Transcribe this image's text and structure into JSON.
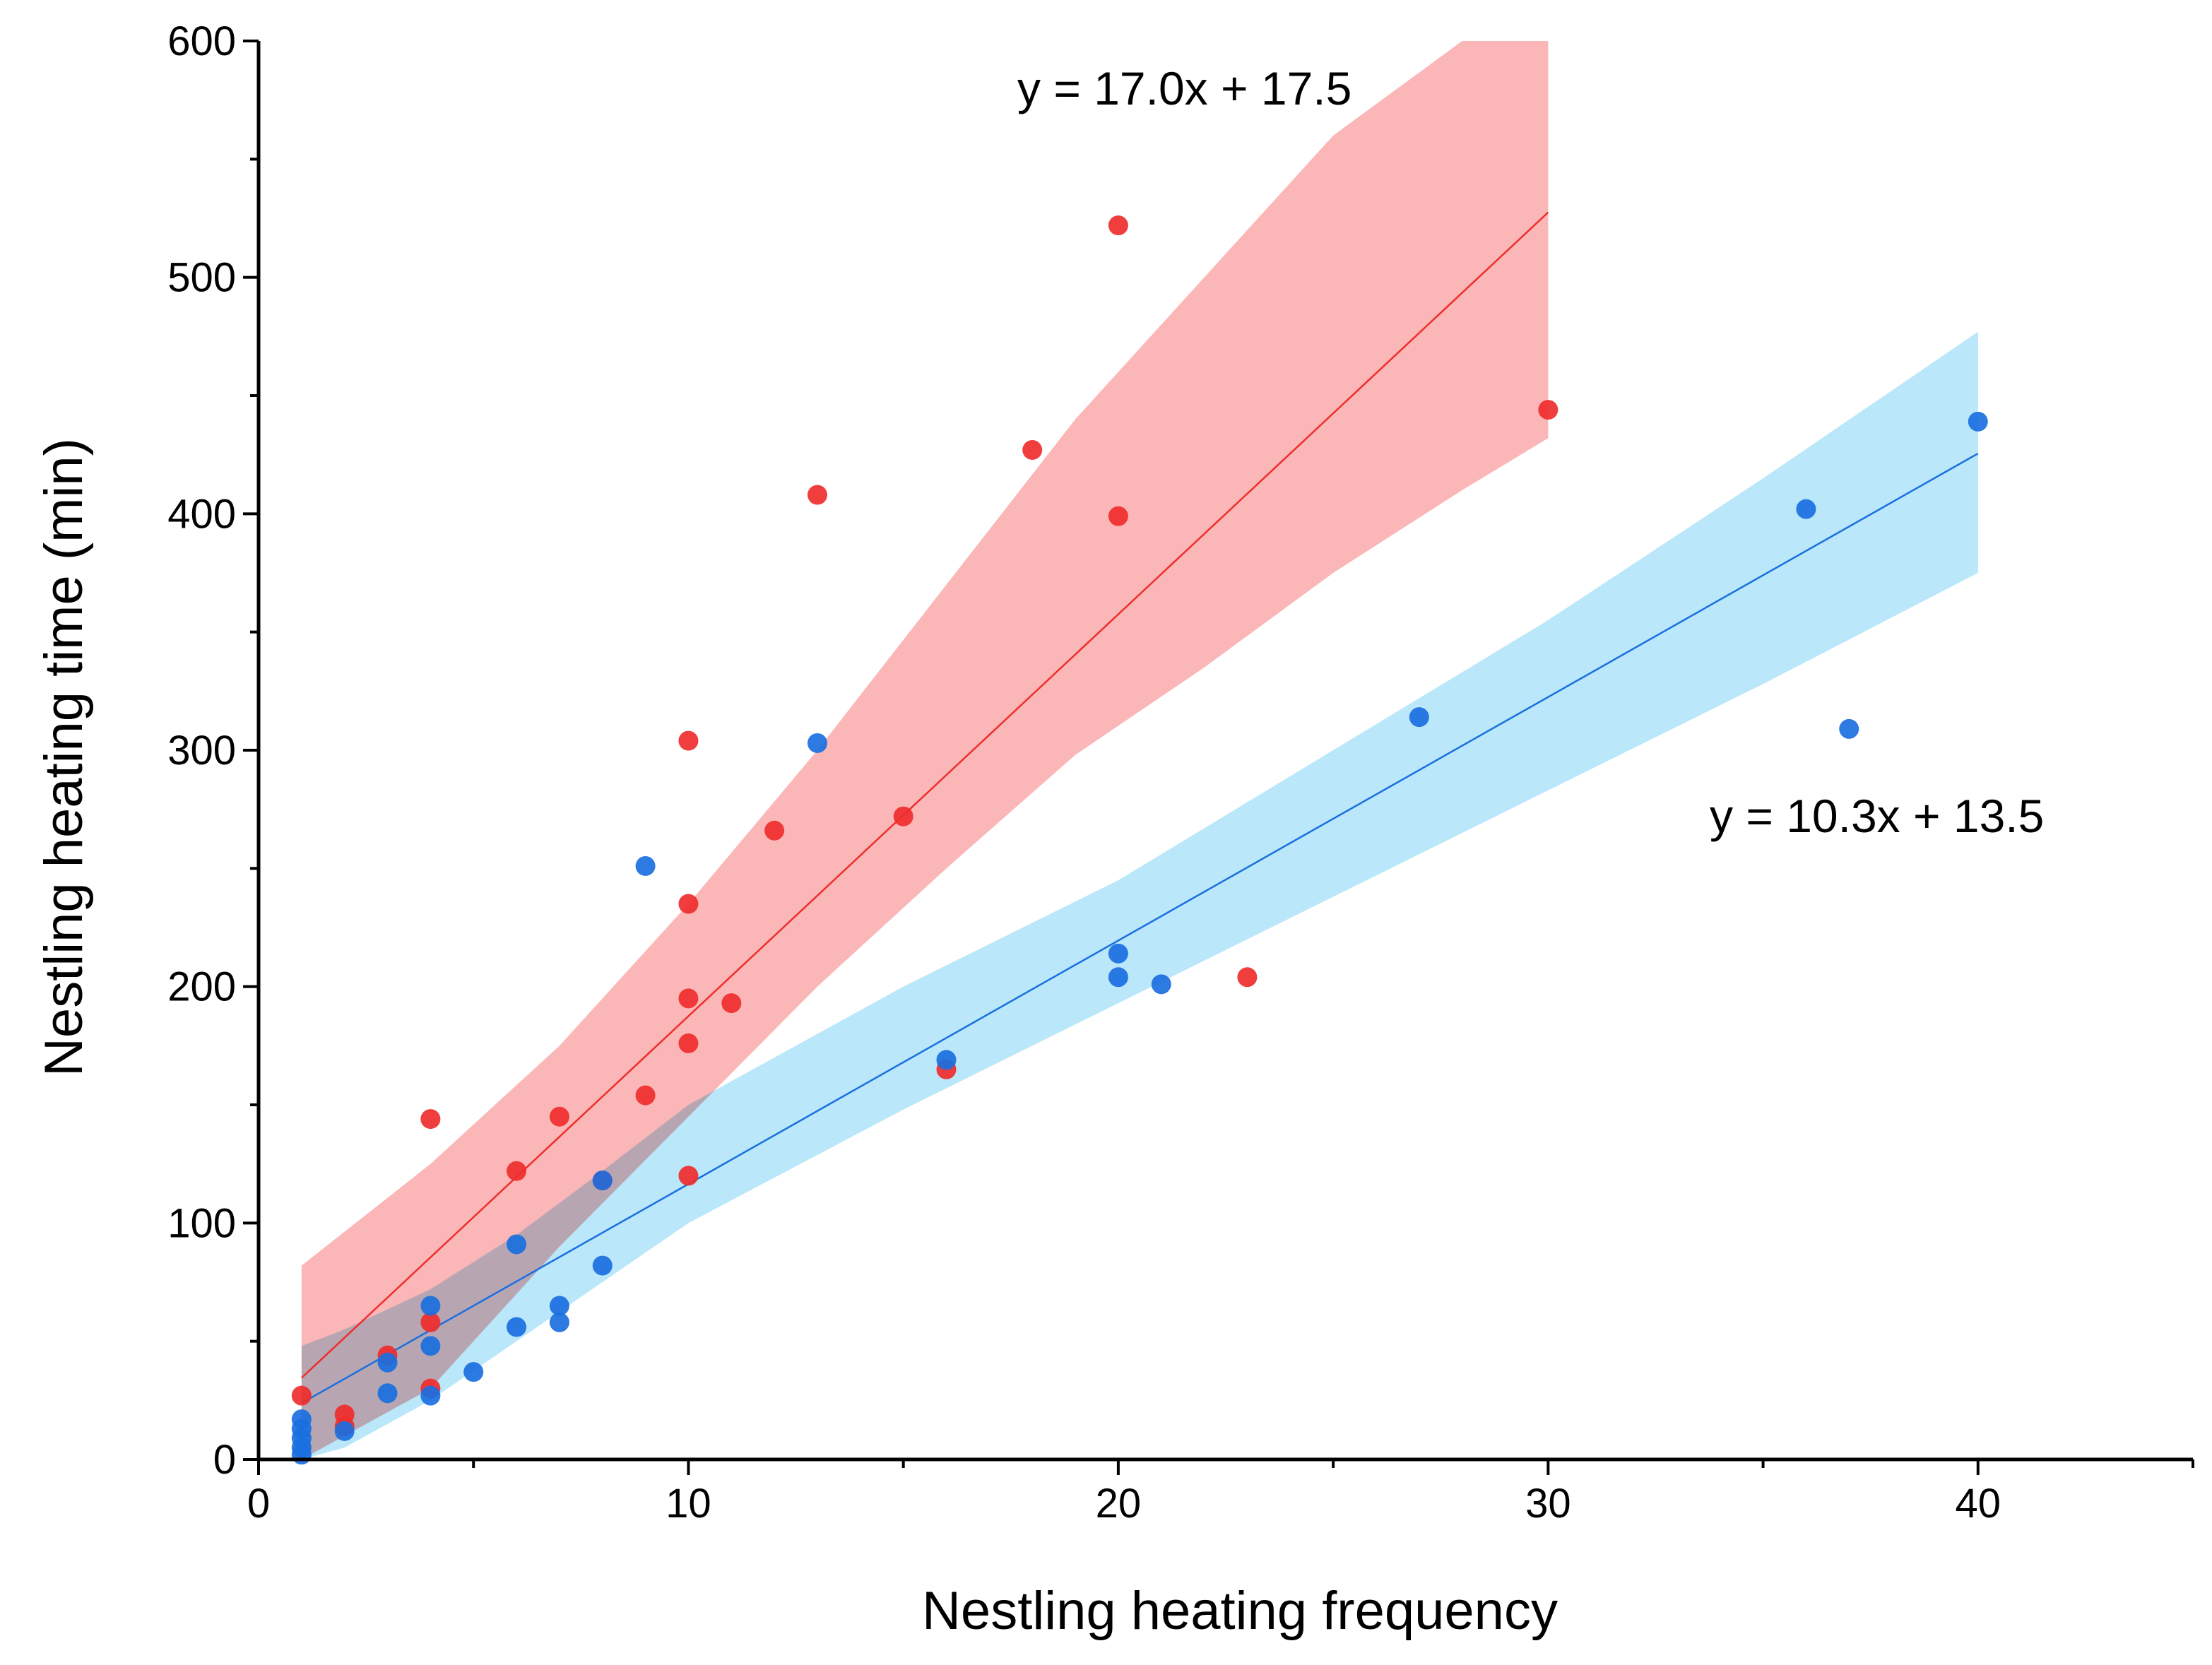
{
  "chart_data": {
    "type": "scatter",
    "title": "",
    "xlabel": "Nestling heating frequency",
    "ylabel": "Nestling heating time (min)",
    "xlim": [
      0,
      45
    ],
    "ylim": [
      0,
      600
    ],
    "x_ticks": [
      0,
      10,
      20,
      30,
      40
    ],
    "x_tick_labels": [
      "0",
      "10",
      "20",
      "30",
      "40"
    ],
    "y_ticks": [
      0,
      100,
      200,
      300,
      400,
      500,
      600
    ],
    "y_tick_labels": [
      "0",
      "100",
      "200",
      "300",
      "400",
      "500",
      "600"
    ],
    "grid": false,
    "legend": "none",
    "series": [
      {
        "name": "red",
        "color": "#ef2d2d",
        "band_color": "#fbb3b3",
        "equation": "y = 17.0x + 17.5",
        "slope": 17.0,
        "intercept": 17.5,
        "fit_range": [
          1,
          30
        ],
        "band": {
          "x": [
            1,
            4,
            7,
            10,
            13,
            16,
            19,
            22,
            25,
            28,
            30
          ],
          "lower": [
            0,
            30,
            90,
            145,
            200,
            250,
            298,
            335,
            375,
            410,
            432
          ],
          "upper": [
            82,
            125,
            175,
            235,
            300,
            370,
            440,
            500,
            560,
            600,
            600
          ]
        },
        "points": [
          {
            "x": 1,
            "y": 27
          },
          {
            "x": 2,
            "y": 19
          },
          {
            "x": 2,
            "y": 14
          },
          {
            "x": 3,
            "y": 44
          },
          {
            "x": 4,
            "y": 144
          },
          {
            "x": 4,
            "y": 58
          },
          {
            "x": 4,
            "y": 30
          },
          {
            "x": 6,
            "y": 122
          },
          {
            "x": 7,
            "y": 145
          },
          {
            "x": 8,
            "y": 118
          },
          {
            "x": 9,
            "y": 154
          },
          {
            "x": 10,
            "y": 304
          },
          {
            "x": 10,
            "y": 235
          },
          {
            "x": 10,
            "y": 195
          },
          {
            "x": 10,
            "y": 176
          },
          {
            "x": 10,
            "y": 120
          },
          {
            "x": 11,
            "y": 193
          },
          {
            "x": 12,
            "y": 266
          },
          {
            "x": 13,
            "y": 408
          },
          {
            "x": 15,
            "y": 272
          },
          {
            "x": 16,
            "y": 165
          },
          {
            "x": 18,
            "y": 427
          },
          {
            "x": 20,
            "y": 522
          },
          {
            "x": 20,
            "y": 399
          },
          {
            "x": 23,
            "y": 204
          },
          {
            "x": 30,
            "y": 444
          }
        ]
      },
      {
        "name": "blue",
        "color": "#1a6fe0",
        "band_color": "#aee3f8",
        "equation": "y = 10.3x + 13.5",
        "slope": 10.3,
        "intercept": 13.5,
        "fit_range": [
          1,
          40
        ],
        "band": {
          "x": [
            1,
            2,
            4,
            6,
            8,
            10,
            15,
            20,
            25,
            30,
            35,
            40
          ],
          "lower": [
            0,
            5,
            25,
            50,
            75,
            100,
            148,
            193,
            238,
            283,
            328,
            375
          ],
          "upper": [
            48,
            55,
            72,
            95,
            122,
            150,
            200,
            245,
            300,
            355,
            415,
            477
          ]
        },
        "points": [
          {
            "x": 1,
            "y": 17
          },
          {
            "x": 1,
            "y": 13
          },
          {
            "x": 1,
            "y": 9
          },
          {
            "x": 1,
            "y": 5
          },
          {
            "x": 1,
            "y": 2
          },
          {
            "x": 2,
            "y": 12
          },
          {
            "x": 3,
            "y": 41
          },
          {
            "x": 3,
            "y": 28
          },
          {
            "x": 4,
            "y": 65
          },
          {
            "x": 4,
            "y": 48
          },
          {
            "x": 4,
            "y": 27
          },
          {
            "x": 5,
            "y": 37
          },
          {
            "x": 6,
            "y": 91
          },
          {
            "x": 6,
            "y": 56
          },
          {
            "x": 7,
            "y": 65
          },
          {
            "x": 7,
            "y": 58
          },
          {
            "x": 8,
            "y": 118
          },
          {
            "x": 8,
            "y": 82
          },
          {
            "x": 9,
            "y": 251
          },
          {
            "x": 13,
            "y": 303
          },
          {
            "x": 16,
            "y": 169
          },
          {
            "x": 20,
            "y": 214
          },
          {
            "x": 20,
            "y": 204
          },
          {
            "x": 21,
            "y": 201
          },
          {
            "x": 27,
            "y": 314
          },
          {
            "x": 36,
            "y": 402
          },
          {
            "x": 37,
            "y": 309
          },
          {
            "x": 40,
            "y": 439
          }
        ]
      }
    ]
  }
}
